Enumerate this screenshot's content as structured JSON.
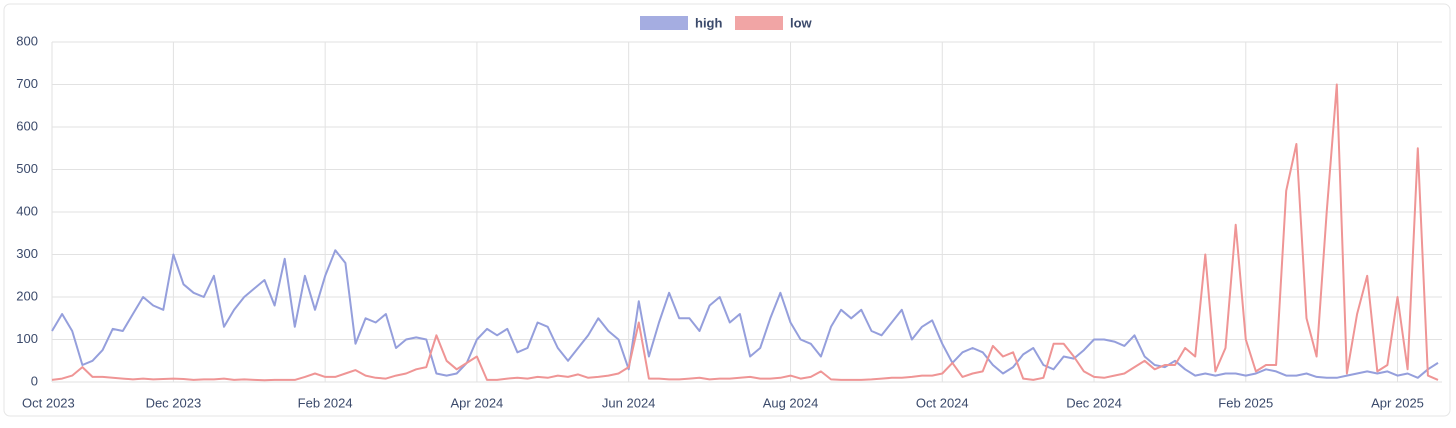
{
  "chart_data": {
    "type": "line",
    "categories": [
      "Oct 2023",
      null,
      null,
      null,
      null,
      null,
      null,
      null,
      null,
      null,
      null,
      null,
      "Dec 2023",
      null,
      null,
      null,
      null,
      null,
      null,
      null,
      null,
      null,
      null,
      null,
      null,
      null,
      null,
      "Feb 2024",
      null,
      null,
      null,
      null,
      null,
      null,
      null,
      null,
      null,
      null,
      null,
      null,
      null,
      null,
      "Apr 2024",
      null,
      null,
      null,
      null,
      null,
      null,
      null,
      null,
      null,
      null,
      null,
      null,
      null,
      null,
      "Jun 2024",
      null,
      null,
      null,
      null,
      null,
      null,
      null,
      null,
      null,
      null,
      null,
      null,
      null,
      null,
      null,
      "Aug 2024",
      null,
      null,
      null,
      null,
      null,
      null,
      null,
      null,
      null,
      null,
      null,
      null,
      null,
      null,
      "Oct 2024",
      null,
      null,
      null,
      null,
      null,
      null,
      null,
      null,
      null,
      null,
      null,
      null,
      null,
      null,
      "Dec 2024",
      null,
      null,
      null,
      null,
      null,
      null,
      null,
      null,
      null,
      null,
      null,
      null,
      null,
      null,
      "Feb 2025",
      null,
      null,
      null,
      null,
      null,
      null,
      null,
      null,
      null,
      null,
      null,
      null,
      null,
      null,
      "Apr 2025",
      null,
      null,
      null,
      null
    ],
    "series": [
      {
        "name": "high",
        "color": "#959fdc",
        "values": [
          120,
          160,
          120,
          40,
          50,
          75,
          125,
          120,
          160,
          200,
          180,
          170,
          300,
          230,
          210,
          200,
          250,
          130,
          170,
          200,
          220,
          240,
          180,
          290,
          130,
          250,
          170,
          250,
          310,
          280,
          90,
          150,
          140,
          160,
          80,
          100,
          105,
          100,
          20,
          15,
          20,
          45,
          100,
          125,
          110,
          125,
          70,
          80,
          140,
          130,
          80,
          50,
          80,
          110,
          150,
          120,
          100,
          30,
          190,
          60,
          140,
          210,
          150,
          150,
          120,
          180,
          200,
          140,
          160,
          60,
          80,
          150,
          210,
          140,
          100,
          90,
          60,
          130,
          170,
          150,
          170,
          120,
          110,
          140,
          170,
          100,
          130,
          145,
          90,
          45,
          70,
          80,
          70,
          40,
          20,
          35,
          65,
          80,
          40,
          30,
          60,
          55,
          75,
          100,
          100,
          95,
          85,
          110,
          60,
          40,
          35,
          50,
          30,
          15,
          20,
          15,
          20,
          20,
          15,
          20,
          30,
          25,
          15,
          15,
          20,
          12,
          10,
          10,
          15,
          20,
          25,
          20,
          25,
          15,
          20,
          10,
          30,
          45
        ]
      },
      {
        "name": "low",
        "color": "#ef9595",
        "values": [
          5,
          8,
          15,
          35,
          12,
          12,
          10,
          8,
          6,
          8,
          6,
          7,
          8,
          7,
          5,
          6,
          6,
          8,
          5,
          6,
          5,
          4,
          5,
          5,
          5,
          12,
          20,
          12,
          12,
          20,
          28,
          15,
          10,
          8,
          15,
          20,
          30,
          35,
          110,
          50,
          30,
          45,
          60,
          5,
          5,
          8,
          10,
          8,
          12,
          10,
          15,
          12,
          18,
          10,
          12,
          15,
          20,
          35,
          140,
          8,
          8,
          6,
          6,
          8,
          10,
          6,
          8,
          8,
          10,
          12,
          8,
          8,
          10,
          15,
          8,
          12,
          25,
          6,
          5,
          5,
          5,
          6,
          8,
          10,
          10,
          12,
          15,
          15,
          20,
          45,
          12,
          20,
          25,
          85,
          60,
          70,
          8,
          5,
          10,
          90,
          90,
          60,
          25,
          12,
          10,
          15,
          20,
          35,
          50,
          30,
          40,
          40,
          80,
          60,
          300,
          25,
          80,
          370,
          100,
          25,
          40,
          40,
          450,
          560,
          150,
          60,
          400,
          700,
          20,
          160,
          250,
          25,
          40,
          200,
          30,
          550,
          15,
          5
        ]
      }
    ],
    "ylim": [
      0,
      800
    ],
    "yticks": [
      0,
      100,
      200,
      300,
      400,
      500,
      600,
      700,
      800
    ],
    "grid": true
  }
}
